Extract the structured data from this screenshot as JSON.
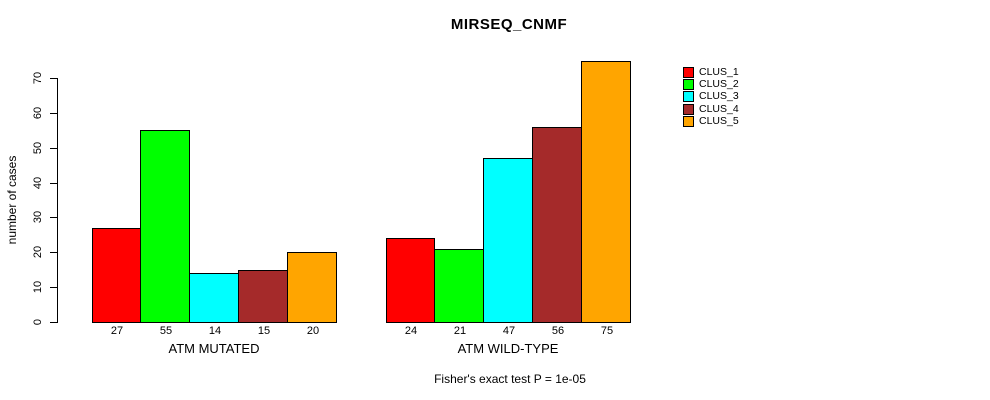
{
  "title": "MIRSEQ_CNMF",
  "chart_data": {
    "type": "bar",
    "title": "MIRSEQ_CNMF",
    "xlabel": "",
    "ylabel": "number of cases",
    "ylim": [
      0,
      70
    ],
    "yticks": [
      0,
      10,
      20,
      30,
      40,
      50,
      60,
      70
    ],
    "grid": false,
    "legend_position": "right",
    "categories": [
      "ATM MUTATED",
      "ATM WILD-TYPE"
    ],
    "series": [
      {
        "name": "CLUS_1",
        "color": "#FF0000",
        "values": [
          27,
          24
        ]
      },
      {
        "name": "CLUS_2",
        "color": "#00FF00",
        "values": [
          55,
          21
        ]
      },
      {
        "name": "CLUS_3",
        "color": "#00FFFF",
        "values": [
          14,
          47
        ]
      },
      {
        "name": "CLUS_4",
        "color": "#A52A2A",
        "values": [
          15,
          56
        ]
      },
      {
        "name": "CLUS_5",
        "color": "#FFA500",
        "values": [
          20,
          75
        ]
      }
    ],
    "groups": [
      {
        "label": "ATM MUTATED",
        "values": [
          27,
          55,
          14,
          15,
          20
        ]
      },
      {
        "label": "ATM WILD-TYPE",
        "values": [
          24,
          21,
          47,
          56,
          75
        ]
      }
    ],
    "bar_value_labels_shown": true,
    "bar_border_color": "#000000",
    "annotation": "Fisher's exact test P = 1e-05"
  },
  "legend": {
    "entries": [
      {
        "label": "CLUS_1",
        "color": "#FF0000"
      },
      {
        "label": "CLUS_2",
        "color": "#00FF00"
      },
      {
        "label": "CLUS_3",
        "color": "#00FFFF"
      },
      {
        "label": "CLUS_4",
        "color": "#A52A2A"
      },
      {
        "label": "CLUS_5",
        "color": "#FFA500"
      }
    ]
  }
}
